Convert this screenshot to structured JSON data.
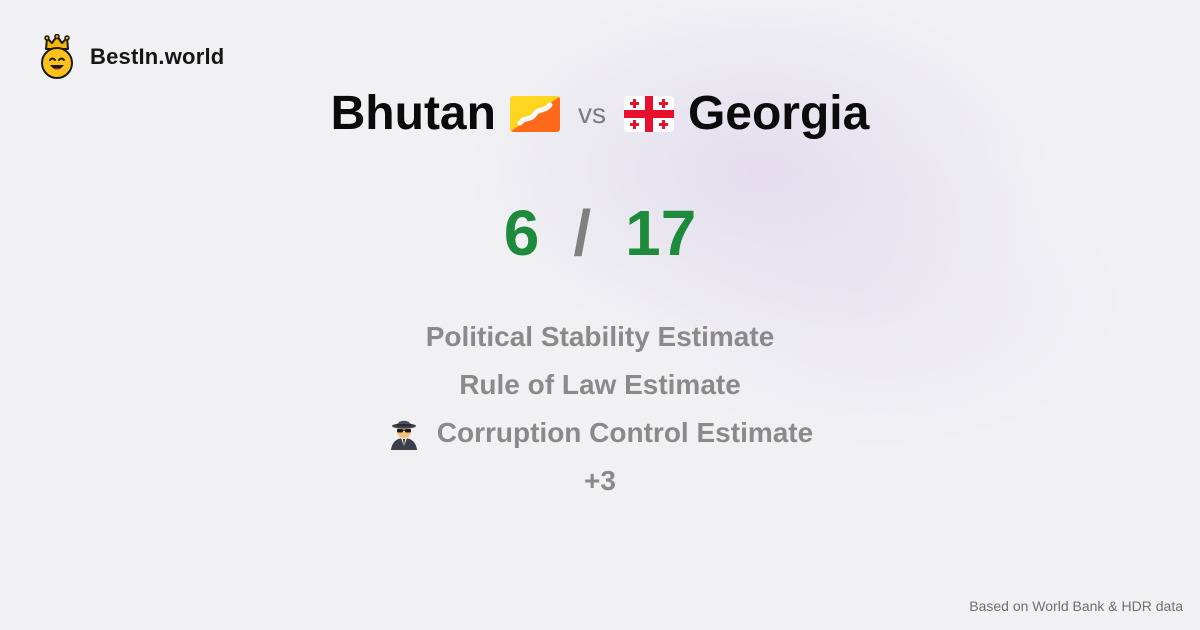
{
  "brand": {
    "name": "BestIn.world",
    "logo_icon": "crown-smiley-icon"
  },
  "comparison": {
    "left": {
      "country": "Bhutan",
      "flag_icon": "bhutan-flag-icon",
      "score": "6"
    },
    "vs_label": "vs",
    "right": {
      "country": "Georgia",
      "flag_icon": "georgia-flag-icon",
      "score": "17"
    },
    "separator": "/"
  },
  "metrics": [
    {
      "label": "Political Stability Estimate",
      "icon": null
    },
    {
      "label": "Rule of Law Estimate",
      "icon": null
    },
    {
      "label": "Corruption Control Estimate",
      "icon": "spy-icon"
    },
    {
      "label": "+3",
      "icon": null
    }
  ],
  "footer": {
    "source_text": "Based on World Bank & HDR data"
  },
  "colors": {
    "score": "#1e8a3b",
    "metric_text": "#8a8a8a",
    "background": "#f1f1f3"
  }
}
